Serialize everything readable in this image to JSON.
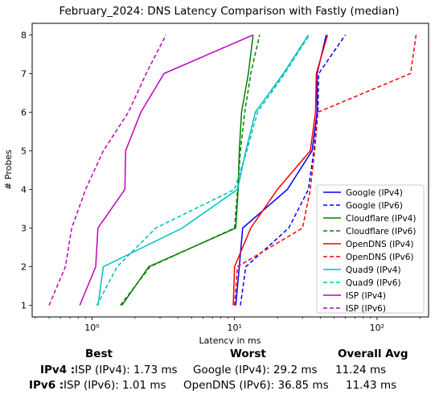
{
  "chart_data": {
    "type": "line",
    "title": "February_2024: DNS Latency Comparison with Fastly (median)",
    "xlabel": "Latency in ms",
    "ylabel": "# Probes",
    "xscale": "log",
    "xlim": [
      0.38,
      230
    ],
    "ylim": [
      0.7,
      8.3
    ],
    "x_ticks": [
      {
        "value": 1,
        "label": "10⁰"
      },
      {
        "value": 10,
        "label": "10¹"
      },
      {
        "value": 100,
        "label": "10²"
      }
    ],
    "y_ticks": [
      1,
      2,
      3,
      4,
      5,
      6,
      7,
      8
    ],
    "grid": false,
    "legend_position": "lower-right",
    "series": [
      {
        "name": "Google (IPv4)",
        "color": "#0000ff",
        "dash": "solid",
        "points": [
          [
            10.2,
            1
          ],
          [
            10.8,
            2
          ],
          [
            11.4,
            3
          ],
          [
            23.5,
            4
          ],
          [
            35.0,
            5
          ],
          [
            38.0,
            6
          ],
          [
            38.0,
            7
          ],
          [
            44.0,
            8
          ]
        ]
      },
      {
        "name": "Google (IPv6)",
        "color": "#0000ff",
        "dash": "dashed",
        "points": [
          [
            11.0,
            1
          ],
          [
            12.0,
            2
          ],
          [
            24.0,
            3
          ],
          [
            33.0,
            4
          ],
          [
            36.0,
            5
          ],
          [
            38.5,
            6
          ],
          [
            39.0,
            7
          ],
          [
            60.0,
            8
          ]
        ]
      },
      {
        "name": "Cloudflare (IPv4)",
        "color": "#008000",
        "dash": "solid",
        "points": [
          [
            1.62,
            1
          ],
          [
            2.5,
            2
          ],
          [
            10.2,
            3
          ],
          [
            10.6,
            4
          ],
          [
            10.8,
            5
          ],
          [
            11.2,
            6
          ],
          [
            12.5,
            7
          ],
          [
            13.5,
            8
          ]
        ]
      },
      {
        "name": "Cloudflare (IPv6)",
        "color": "#008000",
        "dash": "dashed",
        "points": [
          [
            1.58,
            1
          ],
          [
            2.55,
            2
          ],
          [
            10.0,
            3
          ],
          [
            10.5,
            4
          ],
          [
            11.0,
            5
          ],
          [
            11.8,
            6
          ],
          [
            13.0,
            7
          ],
          [
            15.0,
            8
          ]
        ]
      },
      {
        "name": "OpenDNS (IPv4)",
        "color": "#ff0000",
        "dash": "solid",
        "points": [
          [
            9.8,
            1
          ],
          [
            10.0,
            2
          ],
          [
            13.0,
            3
          ],
          [
            20.0,
            4
          ],
          [
            34.0,
            5
          ],
          [
            37.0,
            6
          ],
          [
            37.5,
            7
          ],
          [
            45.0,
            8
          ]
        ]
      },
      {
        "name": "OpenDNS (IPv6)",
        "color": "#ff0000",
        "dash": "dashed",
        "points": [
          [
            10.0,
            1
          ],
          [
            10.5,
            2
          ],
          [
            30.0,
            3
          ],
          [
            34.0,
            4
          ],
          [
            36.5,
            5
          ],
          [
            38.5,
            6
          ],
          [
            172.0,
            7
          ],
          [
            188.0,
            8
          ]
        ]
      },
      {
        "name": "Quad9 (IPv4)",
        "color": "#00bfbf",
        "dash": "solid",
        "points": [
          [
            1.1,
            1
          ],
          [
            1.2,
            2
          ],
          [
            4.3,
            3
          ],
          [
            10.5,
            4
          ],
          [
            12.0,
            5
          ],
          [
            14.0,
            6
          ],
          [
            22.0,
            7
          ],
          [
            33.0,
            8
          ]
        ]
      },
      {
        "name": "Quad9 (IPv6)",
        "color": "#00bfbf",
        "dash": "dashed",
        "points": [
          [
            1.08,
            1
          ],
          [
            1.5,
            2
          ],
          [
            2.8,
            3
          ],
          [
            10.0,
            4
          ],
          [
            12.2,
            5
          ],
          [
            14.5,
            6
          ],
          [
            22.5,
            7
          ],
          [
            33.5,
            8
          ]
        ]
      },
      {
        "name": "ISP (IPv4)",
        "color": "#bf00bf",
        "dash": "solid",
        "points": [
          [
            0.82,
            1
          ],
          [
            1.06,
            2
          ],
          [
            1.1,
            3
          ],
          [
            1.7,
            4
          ],
          [
            1.72,
            5
          ],
          [
            2.2,
            6
          ],
          [
            3.2,
            7
          ],
          [
            13.5,
            8
          ]
        ]
      },
      {
        "name": "ISP (IPv6)",
        "color": "#bf00bf",
        "dash": "dashed",
        "points": [
          [
            0.5,
            1
          ],
          [
            0.65,
            2
          ],
          [
            0.72,
            3
          ],
          [
            0.9,
            4
          ],
          [
            1.2,
            5
          ],
          [
            1.8,
            6
          ],
          [
            2.4,
            7
          ],
          [
            3.3,
            8
          ]
        ]
      }
    ]
  },
  "summary": {
    "headers": {
      "best": "Best",
      "worst": "Worst",
      "avg": "Overall Avg"
    },
    "ipv4": {
      "label": "IPv4 :",
      "best": "ISP (IPv4): 1.73 ms",
      "worst": "Google (IPv4): 29.2 ms",
      "avg": "11.24 ms"
    },
    "ipv6": {
      "label": "IPv6 :",
      "best": "ISP (IPv6): 1.01 ms",
      "worst": "OpenDNS (IPv6): 36.85 ms",
      "avg": "11.43 ms"
    }
  }
}
